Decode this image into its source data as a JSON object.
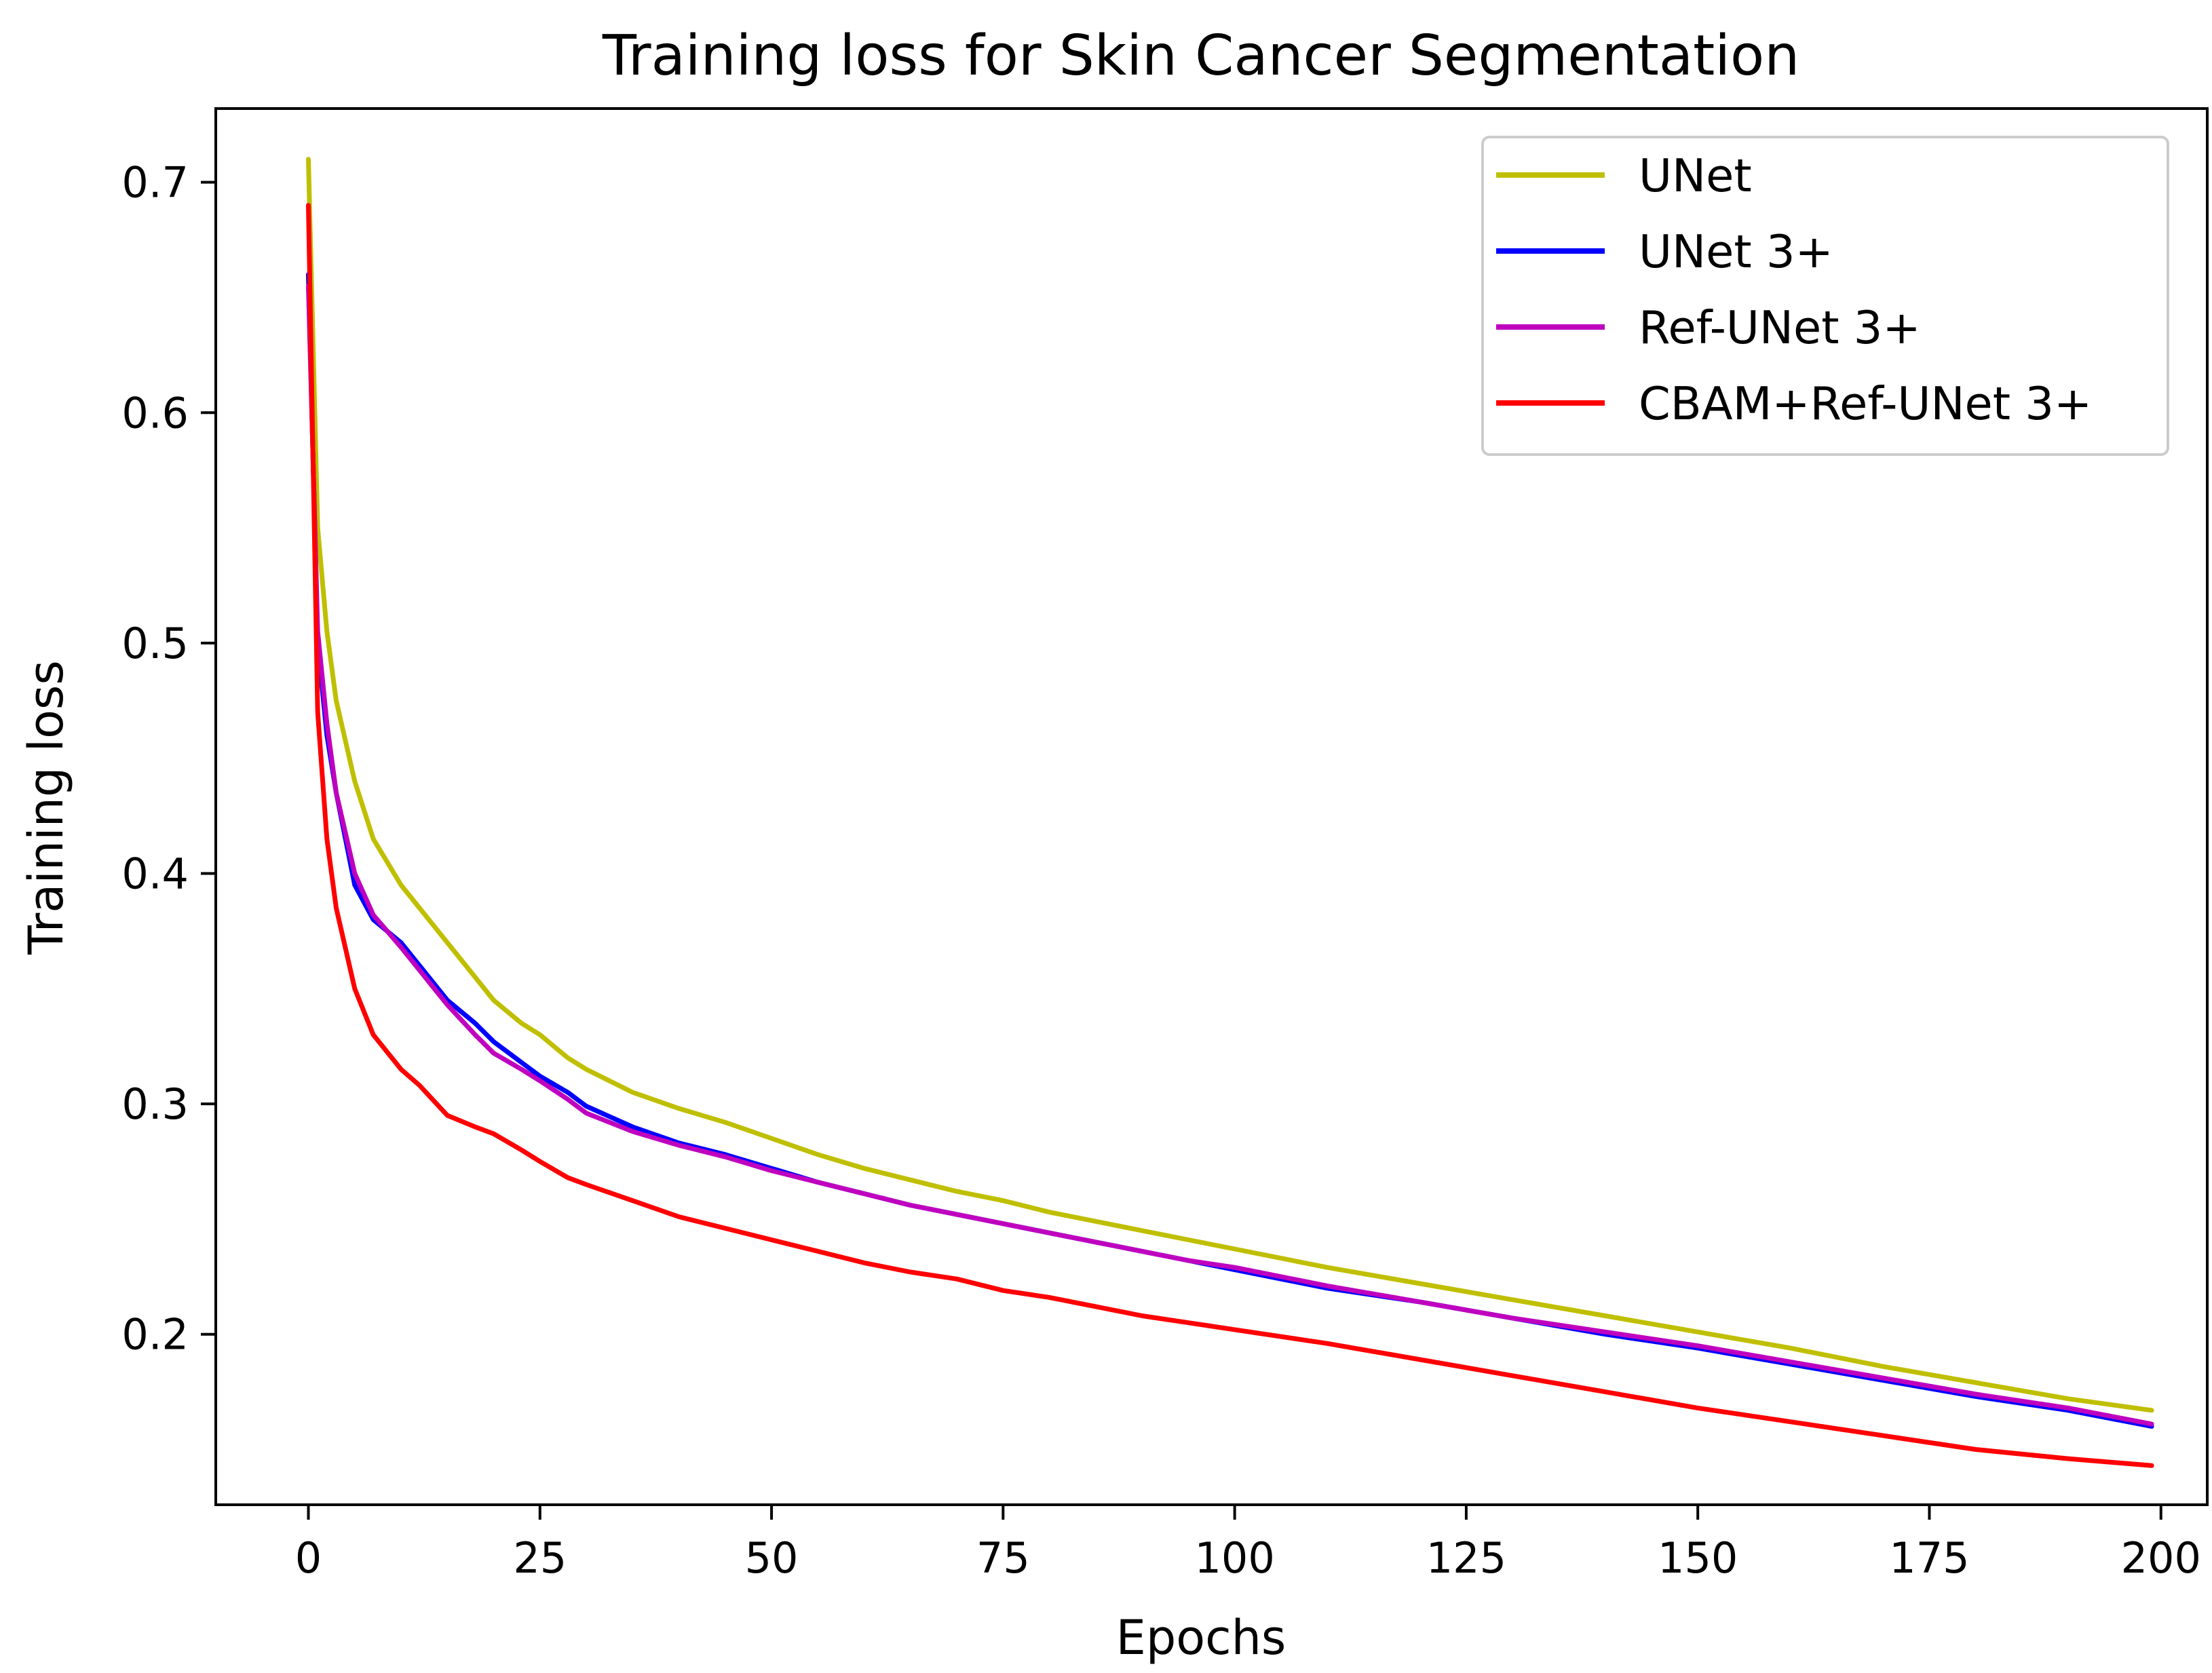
{
  "chart_data": {
    "type": "line",
    "title": "Training loss for Skin Cancer Segmentation",
    "xlabel": "Epochs",
    "ylabel": "Training loss",
    "xlim": [
      -10,
      205
    ],
    "ylim": [
      0.126,
      0.732
    ],
    "xticks": [
      0,
      25,
      50,
      75,
      100,
      125,
      150,
      175,
      200
    ],
    "yticks": [
      0.2,
      0.3,
      0.4,
      0.5,
      0.6,
      0.7
    ],
    "xtick_labels": [
      "0",
      "25",
      "50",
      "75",
      "100",
      "125",
      "150",
      "175",
      "200"
    ],
    "ytick_labels": [
      "0.2",
      "0.3",
      "0.4",
      "0.5",
      "0.6",
      "0.7"
    ],
    "legend_position": "top-right",
    "x": [
      0,
      1,
      2,
      3,
      5,
      7,
      10,
      12,
      15,
      18,
      20,
      23,
      25,
      28,
      30,
      35,
      40,
      45,
      50,
      55,
      60,
      65,
      70,
      75,
      80,
      85,
      90,
      95,
      100,
      110,
      120,
      130,
      140,
      150,
      160,
      170,
      180,
      190,
      199
    ],
    "series": [
      {
        "name": "UNet",
        "color": "#bfbf00",
        "values": [
          0.71,
          0.55,
          0.505,
          0.475,
          0.44,
          0.415,
          0.395,
          0.385,
          0.37,
          0.355,
          0.345,
          0.335,
          0.33,
          0.32,
          0.315,
          0.305,
          0.298,
          0.292,
          0.285,
          0.278,
          0.272,
          0.267,
          0.262,
          0.258,
          0.253,
          0.249,
          0.245,
          0.241,
          0.237,
          0.229,
          0.222,
          0.215,
          0.208,
          0.201,
          0.194,
          0.186,
          0.179,
          0.172,
          0.167
        ]
      },
      {
        "name": "UNet 3+",
        "color": "#0000ff",
        "values": [
          0.66,
          0.5,
          0.46,
          0.435,
          0.395,
          0.38,
          0.37,
          0.36,
          0.345,
          0.335,
          0.327,
          0.318,
          0.312,
          0.305,
          0.299,
          0.29,
          0.283,
          0.278,
          0.272,
          0.266,
          0.261,
          0.256,
          0.252,
          0.248,
          0.244,
          0.24,
          0.236,
          0.232,
          0.228,
          0.22,
          0.214,
          0.207,
          0.2,
          0.194,
          0.187,
          0.18,
          0.173,
          0.167,
          0.16
        ]
      },
      {
        "name": "Ref-UNet 3+",
        "color": "#bf00bf",
        "values": [
          0.655,
          0.505,
          0.465,
          0.435,
          0.4,
          0.382,
          0.368,
          0.358,
          0.343,
          0.33,
          0.322,
          0.315,
          0.31,
          0.302,
          0.296,
          0.288,
          0.282,
          0.277,
          0.271,
          0.266,
          0.261,
          0.256,
          0.252,
          0.248,
          0.244,
          0.24,
          0.236,
          0.232,
          0.229,
          0.221,
          0.214,
          0.207,
          0.201,
          0.195,
          0.188,
          0.181,
          0.174,
          0.168,
          0.161
        ]
      },
      {
        "name": "CBAM+Ref-UNet 3+",
        "color": "#ff0000",
        "values": [
          0.69,
          0.47,
          0.415,
          0.385,
          0.35,
          0.33,
          0.315,
          0.308,
          0.295,
          0.29,
          0.287,
          0.28,
          0.275,
          0.268,
          0.265,
          0.258,
          0.251,
          0.246,
          0.241,
          0.236,
          0.231,
          0.227,
          0.224,
          0.219,
          0.216,
          0.212,
          0.208,
          0.205,
          0.202,
          0.196,
          0.189,
          0.182,
          0.175,
          0.168,
          0.162,
          0.156,
          0.15,
          0.146,
          0.143
        ]
      }
    ]
  }
}
